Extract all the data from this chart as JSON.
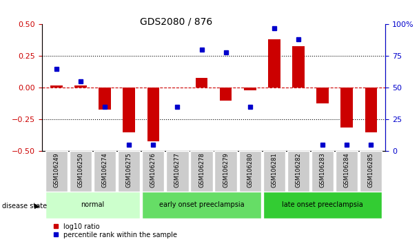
{
  "title": "GDS2080 / 876",
  "samples": [
    "GSM106249",
    "GSM106250",
    "GSM106274",
    "GSM106275",
    "GSM106276",
    "GSM106277",
    "GSM106278",
    "GSM106279",
    "GSM106280",
    "GSM106281",
    "GSM106282",
    "GSM106283",
    "GSM106284",
    "GSM106285"
  ],
  "log10_ratio": [
    0.02,
    0.02,
    -0.17,
    -0.35,
    -0.42,
    0.0,
    0.08,
    -0.1,
    -0.02,
    0.38,
    0.33,
    -0.12,
    -0.31,
    -0.35
  ],
  "percentile_rank": [
    65,
    55,
    35,
    5,
    5,
    35,
    80,
    78,
    35,
    97,
    88,
    5,
    5,
    5
  ],
  "groups": [
    {
      "label": "normal",
      "start": 0,
      "end": 3,
      "color": "#ccffcc"
    },
    {
      "label": "early onset preeclampsia",
      "start": 4,
      "end": 8,
      "color": "#66dd66"
    },
    {
      "label": "late onset preeclampsia",
      "start": 9,
      "end": 13,
      "color": "#33cc33"
    }
  ],
  "bar_color": "#cc0000",
  "dot_color": "#0000cc",
  "ylim_left": [
    -0.5,
    0.5
  ],
  "ylim_right": [
    0,
    100
  ],
  "yticks_left": [
    -0.5,
    -0.25,
    0.0,
    0.25,
    0.5
  ],
  "yticks_right": [
    0,
    25,
    50,
    75,
    100
  ],
  "dotted_lines": [
    -0.25,
    0.25
  ],
  "zero_line": 0.0,
  "tick_label_color_left": "#cc0000",
  "tick_label_color_right": "#0000cc",
  "group_normal_color": "#ccffcc",
  "group_early_color": "#66dd66",
  "group_late_color": "#33cc33"
}
